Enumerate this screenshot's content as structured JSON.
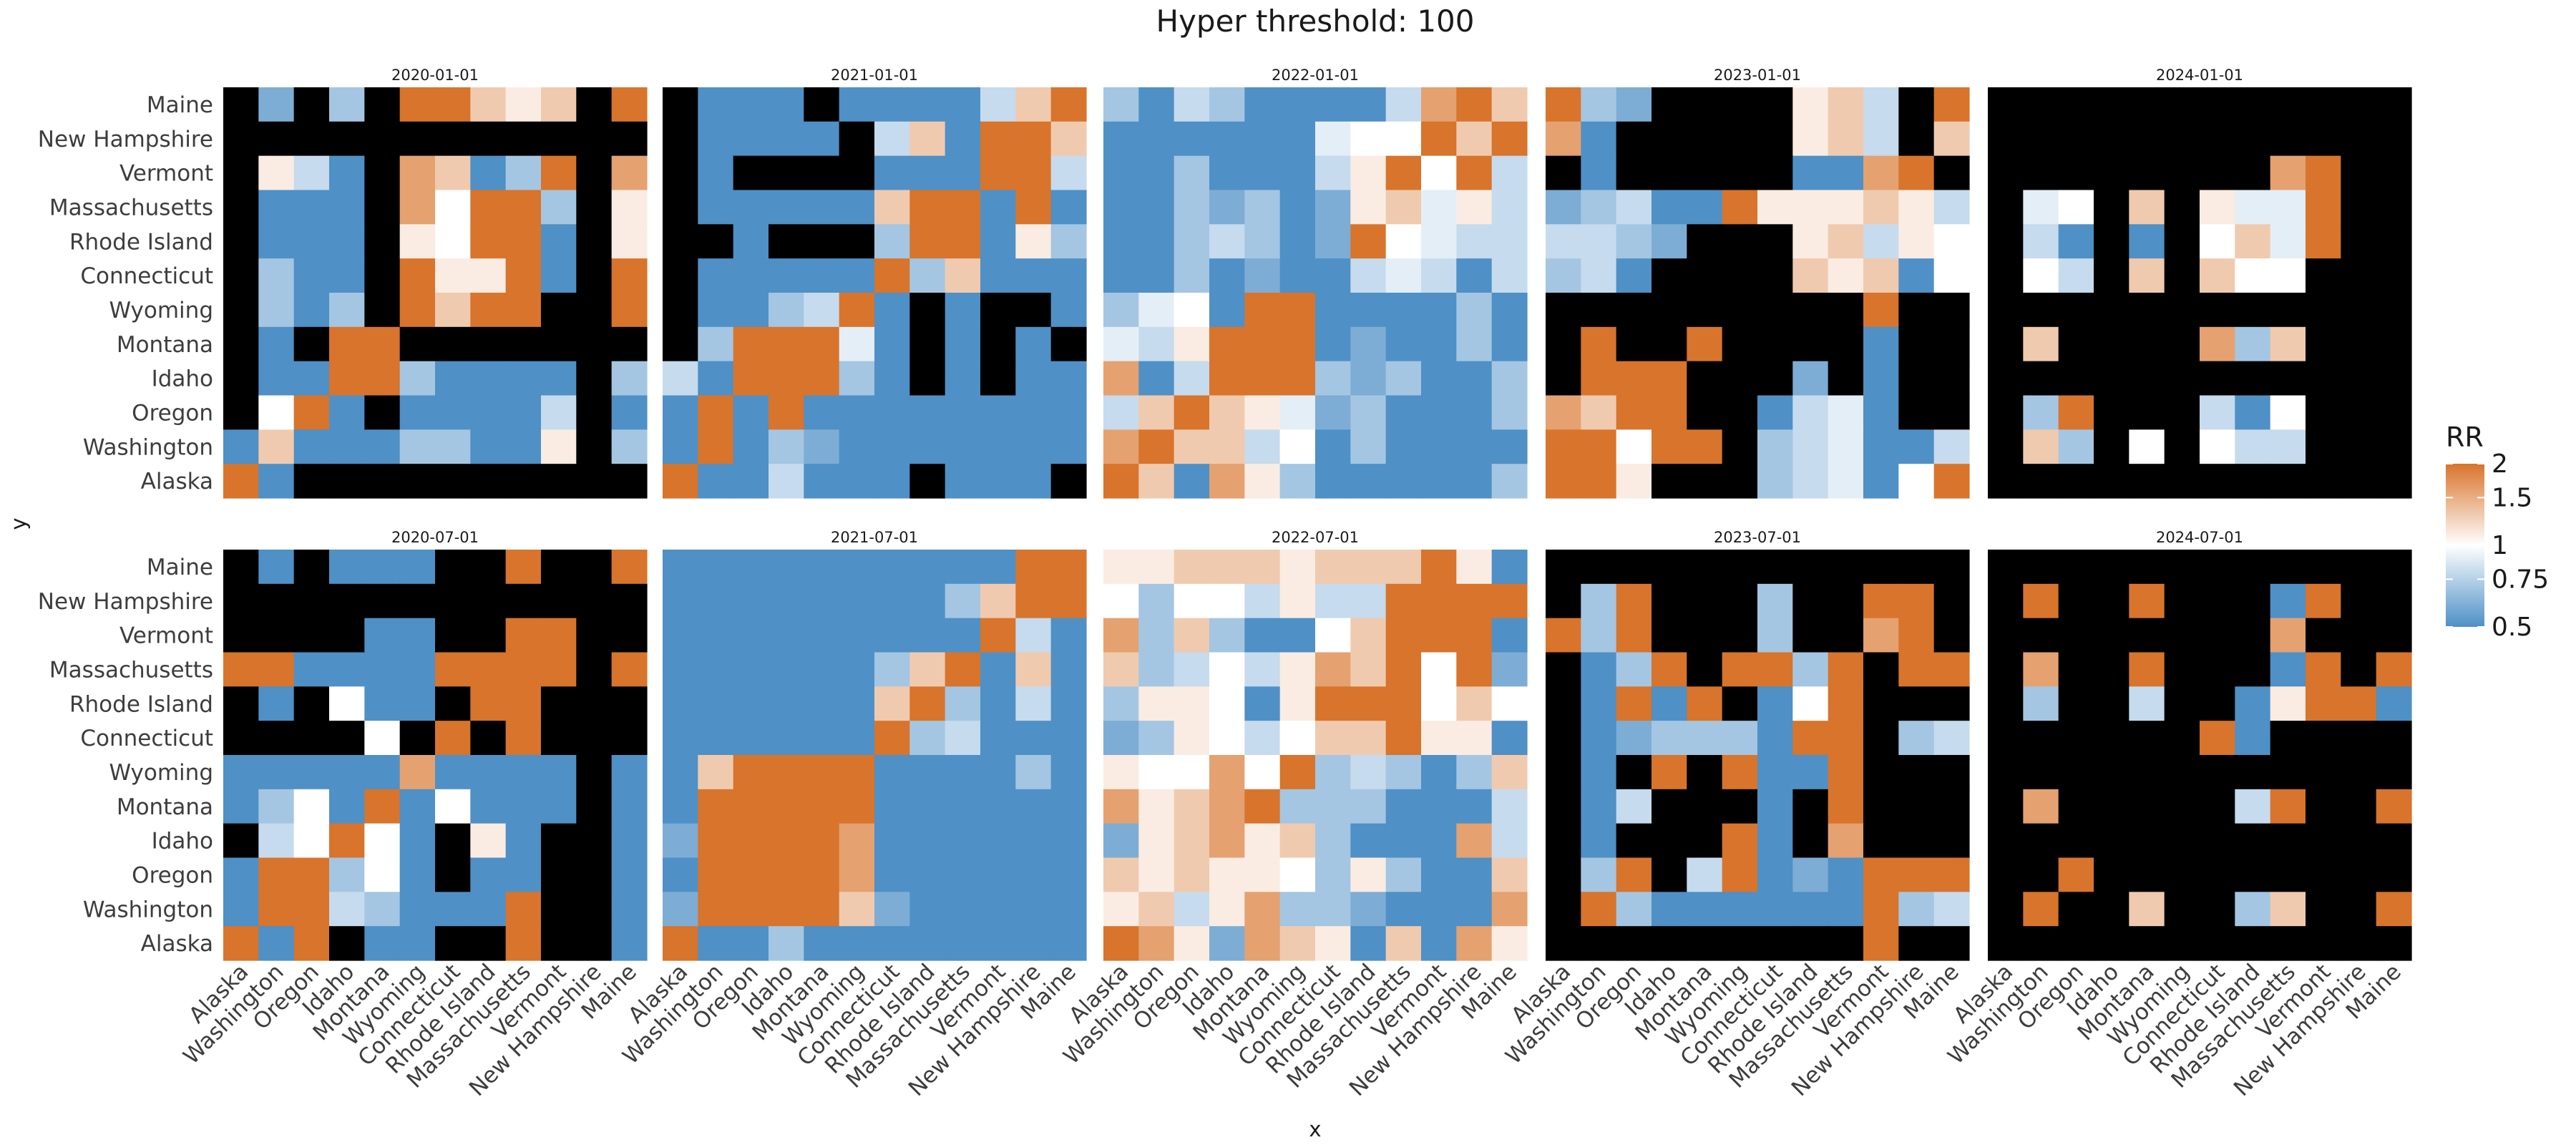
{
  "chart_data": {
    "type": "heatmap",
    "title": "Hyper threshold: 100",
    "xlabel": "x",
    "ylabel": "y",
    "x_categories": [
      "Alaska",
      "Washington",
      "Oregon",
      "Idaho",
      "Montana",
      "Wyoming",
      "Connecticut",
      "Rhode Island",
      "Massachusetts",
      "Vermont",
      "New Hampshire",
      "Maine"
    ],
    "y_categories_top_to_bottom": [
      "Maine",
      "New Hampshire",
      "Vermont",
      "Massachusetts",
      "Rhode Island",
      "Connecticut",
      "Wyoming",
      "Montana",
      "Idaho",
      "Oregon",
      "Washington",
      "Alaska"
    ],
    "facets": [
      "2020-01-01",
      "2021-01-01",
      "2022-01-01",
      "2023-01-01",
      "2024-01-01",
      "2020-07-01",
      "2021-07-01",
      "2022-07-01",
      "2023-07-01",
      "2024-07-01"
    ],
    "facet_grid": {
      "rows": 2,
      "cols": 5
    },
    "na_color": "#000000",
    "legend": {
      "title": "RR",
      "position": "right",
      "ticks": [
        "2",
        "1.5",
        "1",
        "0.75",
        "0.5"
      ],
      "range": [
        0.5,
        2
      ],
      "colors": {
        "low": "#4f90c6",
        "mid": "#ffffff",
        "high": "#d8742c"
      }
    },
    "value_encoding": "Each matrix row is one y category (top to bottom), each character one x category (left to right). Codes: X = missing (black); B = 0.5; b = 0.6; c = 0.7; d = 0.8; e = 0.9; w = 1.0; f = 1.1; g = 1.3; h = 1.6; O = 2.0.",
    "matrices": [
      [
        "XbXcXOOgfgXO",
        "XXXXXXXXXXXX",
        "XfdBXhgBcOXh",
        "XBBBXhwOOcXf",
        "XBBBXfwOOBXf",
        "XcBBXOffOBXO",
        "XcBcXOgOOXXO",
        "XBXOOXXXXXXX",
        "XBBOOcBBBBXc",
        "XwOBXBBBBdXB",
        "BgBBBccBBfXc",
        "OBXXXXXXXXXX"
      ],
      [
        "XBBBXBBBBdgO",
        "XBBBBXdgBOOg",
        "XBXXXXBBBOOd",
        "XBBBBBgOOBOB",
        "XXBXXXcOOBfc",
        "XBBBBBOcgBBB",
        "XBBcdOBXBXXB",
        "XcOOOeBXBXBX",
        "dBOOOcBXBXBB",
        "BOBOBBBBBBBB",
        "BOBcbBBBBBBB",
        "OBBdBBBXBBBX"
      ],
      [
        "cBdcBBBBdhOg",
        "BBBBBBewwOgO",
        "BBcBBBdfOwOd",
        "BBcbcBbfgefd",
        "BBcdcBbOwedd",
        "BBcBbBBdedBd",
        "cewBOOBBBBcB",
        "edfOOOBbBBcB",
        "hBdOOOcbcBBc",
        "dgOgfebcBBBc",
        "hOggdwBcBBBB",
        "OgBhfcBBBBBc"
      ],
      [
        "OcbXXXXfgdXO",
        "hBXXXXXfgdXg",
        "XBXXXXXBBhOX",
        "bcdBBOfffgfd",
        "ddcbXXXfgdfw",
        "cdBXXXXgfgBw",
        "XXXXXXXXXOXX",
        "XOXXOXXXXBXX",
        "XOOOXXXbXBXX",
        "hgOOXXBdeBXX",
        "OOwOOXcdeBBd",
        "OOfXXXcdeBwO"
      ],
      [
        "XXXXXXXXXXXX",
        "XXXXXXXXXXXX",
        "XXXXXXXXhOXX",
        "XewXgXfeeOXX",
        "XdBXBXwgeOXX",
        "XwdXgXgwwXXX",
        "XXXXXXXXXXXX",
        "XgXXXXhcgXXX",
        "XXXXXXXXXXXX",
        "XcOXXXdBwXXX",
        "XgcXwXwddXXX",
        "XXXXXXXXXXXX"
      ],
      [
        "XBXBBBXXOXXO",
        "XXXXXXXXXXXX",
        "XXXXBBXXOOXX",
        "OOBBBBOOOOXO",
        "XBXwBBXOOXXX",
        "XXXXwXOXOXXX",
        "BBBBBhBBBBXB",
        "BcwBOBwBBBXB",
        "XdwOwBXfBXXB",
        "BOOcwBXBBXXB",
        "BOOdcBBBOXXB",
        "OBOXBBXXOXXB"
      ],
      [
        "BBBBBBBBBBOO",
        "BBBBBBBBcgOO",
        "BBBBBBBBBOdB",
        "BBBBBBcgOBgB",
        "BBBBBBgOcBdB",
        "BBBBBBOcdBBB",
        "BgOOOOBBBBcB",
        "BOOOOOBBBBBB",
        "bOOOOhBBBBBB",
        "BOOOOhBBBBBB",
        "bOOOOgbBBBBB",
        "OBBcBBBBBBBB"
      ],
      [
        "ffgggfgggOfB",
        "wcwwdfddOOOO",
        "hcgcBBwgOOOB",
        "gcdwdfhgOwOb",
        "cffwBfOOOwgw",
        "bcfwdwggOffB",
        "fwwhwOcdcBcg",
        "hfghOcccBBBd",
        "bfghfgcBBBhd",
        "gfgffwcfcBBg",
        "fgdfhccbBBBh",
        "OhfbhgfBgBhf"
      ],
      [
        "XXXXXXXXXXXX",
        "XcOXXXcXXOOX",
        "OcOXXXcXXhOX",
        "XBcOXOOcOXOO",
        "XBOBOXBwOXXX",
        "XBbcccBOOXcd",
        "XBXOXOBBOXXX",
        "XBdXXXBXOXXX",
        "XBXXXOBXhXXX",
        "XcOXdOBbBOOO",
        "XOcBBBBBBOcd",
        "XXXXXXXXXOXX"
      ],
      [
        "XXXXXXXXXXXX",
        "XOXXOXXXBOXX",
        "XXXXXXXXhXXX",
        "XhXXOXXXBOXO",
        "XcXXdXXBfOOB",
        "XXXXXXOBXXXX",
        "XXXXXXXXXXXX",
        "XhXXXXXdOXXO",
        "XXXXXXXXXXXX",
        "XXOXXXXXXXXX",
        "XOXXgXXcgXXO",
        "XXXXXXXXXXXX"
      ]
    ]
  }
}
